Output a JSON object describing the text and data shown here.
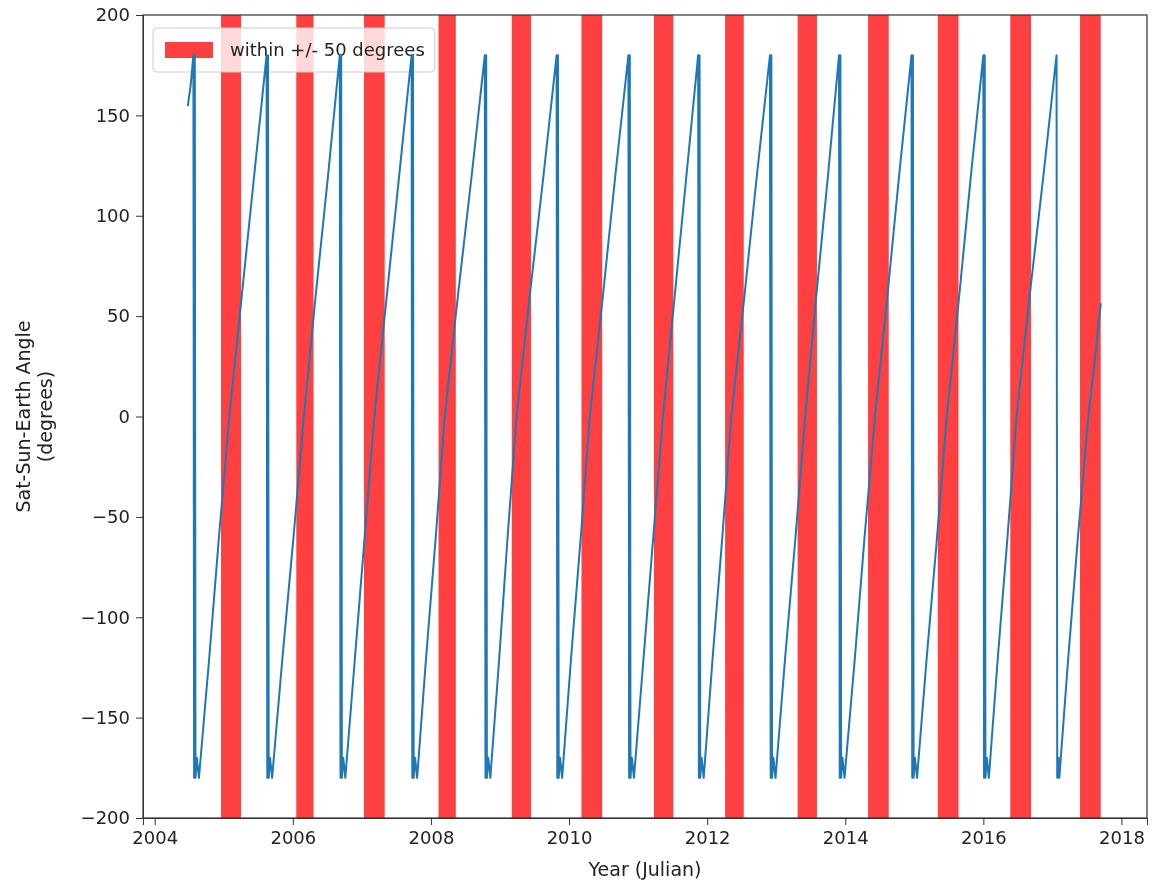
{
  "chart_data": {
    "type": "line",
    "xlabel": "Year (Julian)",
    "ylabel": "Sat-Sun-Earth Angle\n(degrees)",
    "xlim": [
      2003.83,
      2018.37
    ],
    "xticks": [
      2004,
      2006,
      2008,
      2010,
      2012,
      2014,
      2016,
      2018
    ],
    "ylim": [
      -200,
      200
    ],
    "yticks": [
      {
        "value": -200,
        "label": "−200"
      },
      {
        "value": -150,
        "label": "−150"
      },
      {
        "value": -100,
        "label": "−100"
      },
      {
        "value": -50,
        "label": "−50"
      },
      0,
      50,
      100,
      150,
      200
    ],
    "legend": "top left",
    "grid": false,
    "line_style": "solid",
    "marker": "none",
    "bands": [
      {
        "axis": "x",
        "from": 2004.96,
        "to": 2005.25,
        "label": "within +/- 50 degrees",
        "color": "#ff4040"
      },
      {
        "axis": "x",
        "from": 2006.05,
        "to": 2006.3,
        "color": "#ff4040"
      },
      {
        "axis": "x",
        "from": 2007.03,
        "to": 2007.33,
        "color": "#ff4040"
      },
      {
        "axis": "x",
        "from": 2008.11,
        "to": 2008.36,
        "color": "#ff4040"
      },
      {
        "axis": "x",
        "from": 2009.17,
        "to": 2009.45,
        "color": "#ff4040"
      },
      {
        "axis": "x",
        "from": 2010.18,
        "to": 2010.48,
        "color": "#ff4040"
      },
      {
        "axis": "x",
        "from": 2011.23,
        "to": 2011.51,
        "color": "#ff4040"
      },
      {
        "axis": "x",
        "from": 2012.26,
        "to": 2012.53,
        "color": "#ff4040"
      },
      {
        "axis": "x",
        "from": 2013.31,
        "to": 2013.59,
        "color": "#ff4040"
      },
      {
        "axis": "x",
        "from": 2014.33,
        "to": 2014.63,
        "color": "#ff4040"
      },
      {
        "axis": "x",
        "from": 2015.34,
        "to": 2015.64,
        "color": "#ff4040"
      },
      {
        "axis": "x",
        "from": 2016.39,
        "to": 2016.69,
        "color": "#ff4040"
      },
      {
        "axis": "x",
        "from": 2017.4,
        "to": 2017.7,
        "color": "#ff4040"
      }
    ],
    "series": [
      {
        "color": "#1f77b4",
        "x": [
          2004.48,
          2004.52,
          2004.56,
          2004.57,
          2004.58,
          2004.59,
          2004.61,
          2004.64,
          2004.79,
          2004.93,
          2005.08,
          2005.26,
          2005.44,
          2005.62,
          2005.63,
          2005.64,
          2005.65,
          2005.67,
          2005.7,
          2005.85,
          2006.01,
          2006.16,
          2006.33,
          2006.51,
          2006.68,
          2006.69,
          2006.7,
          2006.71,
          2006.73,
          2006.76,
          2006.9,
          2007.04,
          2007.18,
          2007.36,
          2007.54,
          2007.72,
          2007.73,
          2007.74,
          2007.75,
          2007.77,
          2007.8,
          2007.93,
          2008.07,
          2008.2,
          2008.39,
          2008.59,
          2008.78,
          2008.79,
          2008.8,
          2008.81,
          2008.83,
          2008.86,
          2008.99,
          2009.11,
          2009.24,
          2009.43,
          2009.63,
          2009.82,
          2009.83,
          2009.84,
          2009.85,
          2009.87,
          2009.9,
          2010.03,
          2010.17,
          2010.3,
          2010.49,
          2010.67,
          2010.86,
          2010.87,
          2010.88,
          2010.89,
          2010.91,
          2010.94,
          2011.08,
          2011.22,
          2011.36,
          2011.53,
          2011.7,
          2011.87,
          2011.88,
          2011.89,
          2011.9,
          2011.92,
          2011.95,
          2012.08,
          2012.22,
          2012.35,
          2012.54,
          2012.72,
          2012.91,
          2012.92,
          2012.93,
          2012.94,
          2012.96,
          2012.99,
          2013.13,
          2013.28,
          2013.42,
          2013.58,
          2013.75,
          2013.91,
          2013.92,
          2013.93,
          2013.94,
          2013.96,
          2013.99,
          2014.14,
          2014.28,
          2014.43,
          2014.61,
          2014.78,
          2014.96,
          2014.97,
          2014.98,
          2014.99,
          2015.01,
          2015.04,
          2015.18,
          2015.33,
          2015.47,
          2015.65,
          2015.82,
          2016.0,
          2016.01,
          2016.02,
          2016.03,
          2016.05,
          2016.08,
          2016.21,
          2016.35,
          2016.48,
          2016.67,
          2016.87,
          2017.06,
          2017.07,
          2017.09,
          2017.1,
          2017.23,
          2017.37,
          2017.52,
          2017.62,
          2017.7
        ],
        "values": [
          155,
          165,
          180,
          -180,
          180,
          -180,
          -170,
          -180,
          -120,
          -60,
          0,
          60,
          120,
          180,
          -180,
          180,
          -180,
          -170,
          -180,
          -120,
          -60,
          0,
          60,
          120,
          180,
          -180,
          180,
          -180,
          -170,
          -180,
          -120,
          -60,
          0,
          60,
          120,
          180,
          -180,
          180,
          -180,
          -170,
          -180,
          -120,
          -60,
          0,
          60,
          120,
          180,
          -180,
          180,
          -180,
          -170,
          -180,
          -120,
          -60,
          0,
          60,
          120,
          180,
          -180,
          180,
          -180,
          -170,
          -180,
          -120,
          -60,
          0,
          60,
          120,
          180,
          -180,
          180,
          -180,
          -170,
          -180,
          -120,
          -60,
          0,
          60,
          120,
          180,
          -180,
          180,
          -180,
          -170,
          -180,
          -120,
          -60,
          0,
          60,
          120,
          180,
          -180,
          180,
          -180,
          -170,
          -180,
          -120,
          -60,
          0,
          60,
          120,
          180,
          -180,
          180,
          -180,
          -170,
          -180,
          -120,
          -60,
          0,
          60,
          120,
          180,
          -180,
          180,
          -180,
          -170,
          -180,
          -120,
          -60,
          0,
          60,
          120,
          180,
          -180,
          180,
          -180,
          -170,
          -180,
          -120,
          -60,
          0,
          60,
          120,
          180,
          -180,
          -170,
          -180,
          -120,
          -60,
          0,
          30,
          56
        ]
      }
    ]
  }
}
